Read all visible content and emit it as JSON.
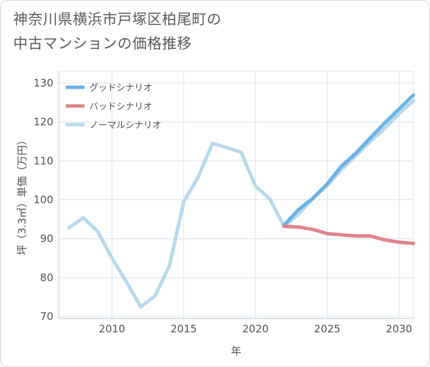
{
  "title": {
    "line1": "神奈川県横浜市戸塚区柏尾町の",
    "line2": "中古マンションの価格推移"
  },
  "chart_data": {
    "type": "line",
    "xlabel": "年",
    "ylabel": "坪（3.3㎡）単価（万円）",
    "xlim": [
      2006.3,
      2031
    ],
    "ylim": [
      69.5,
      133
    ],
    "x_ticks": [
      2010,
      2015,
      2020,
      2025,
      2030
    ],
    "y_ticks": [
      70,
      80,
      90,
      100,
      110,
      120,
      130
    ],
    "legend_position": "top-left",
    "series": [
      {
        "name": "グッドシナリオ",
        "color": "#6ab2e8",
        "x": [
          2022,
          2023,
          2024,
          2025,
          2026,
          2027,
          2028,
          2029,
          2030,
          2031
        ],
        "values": [
          93.5,
          97.5,
          100.4,
          104.1,
          108.7,
          112.0,
          115.9,
          119.7,
          123.3,
          126.9
        ]
      },
      {
        "name": "バッドシナリオ",
        "color": "#e0838b",
        "x": [
          2022,
          2023,
          2024,
          2025,
          2026,
          2027,
          2028,
          2029,
          2030,
          2031
        ],
        "values": [
          93.2,
          93.0,
          92.4,
          91.3,
          91.0,
          90.7,
          90.7,
          89.7,
          89.1,
          88.8
        ]
      },
      {
        "name": "ノーマルシナリオ",
        "color": "#b7d9ec",
        "x": [
          2007,
          2008,
          2009,
          2010,
          2011,
          2012,
          2013,
          2014,
          2015,
          2016,
          2017,
          2018,
          2019,
          2020,
          2021,
          2022,
          2023,
          2024,
          2025,
          2026,
          2027,
          2028,
          2029,
          2030,
          2031
        ],
        "values": [
          92.8,
          95.4,
          91.9,
          85.0,
          79.0,
          72.5,
          75.3,
          83.0,
          99.5,
          105.8,
          114.5,
          113.4,
          112.2,
          103.5,
          100.2,
          93.2,
          96.3,
          100.3,
          103.7,
          107.8,
          111.3,
          115.0,
          118.3,
          122.1,
          125.4
        ]
      }
    ]
  }
}
